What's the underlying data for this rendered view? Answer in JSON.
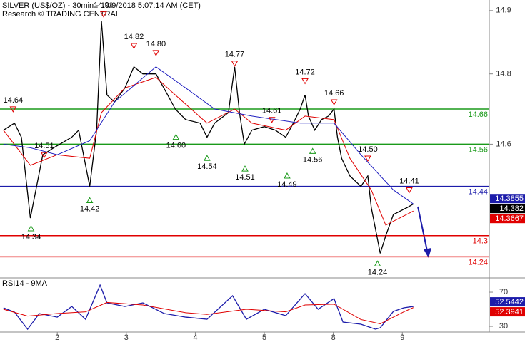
{
  "chart_data": [
    {
      "type": "line",
      "title": "SILVER (US$/OZ) - 30min - 10/9/2018 5:07:14 AM (CET)",
      "subtitle": "Research © TRADING CENTRAL",
      "xlim": [
        1.17,
        10.26
      ],
      "xticks": [
        2,
        3,
        4,
        5,
        8,
        9
      ],
      "ylim": [
        14.18,
        14.97
      ],
      "yticks": [
        {
          "value": 14.94,
          "label": "14.9"
        },
        {
          "value": 14.76,
          "label": "14.8"
        },
        {
          "value": 14.56,
          "label": "14.6"
        }
      ],
      "series": [
        {
          "color": "#000000",
          "x": [
            1.22,
            1.38,
            1.48,
            1.61,
            1.79,
            1.95,
            2.21,
            2.31,
            2.47,
            2.57,
            2.64,
            2.72,
            2.83,
            2.98,
            3.11,
            3.24,
            3.43,
            3.6,
            3.71,
            3.86,
            4.07,
            4.17,
            4.28,
            4.48,
            4.57,
            4.64,
            4.71,
            4.82,
            5.0,
            5.16,
            5.31,
            5.42,
            5.52,
            5.59,
            5.64,
            5.73,
            5.83,
            5.93,
            8.01,
            8.06,
            8.12,
            8.24,
            8.4,
            8.5,
            8.55,
            8.63,
            8.68,
            8.76,
            8.87,
            8.97,
            9.07,
            9.16
          ],
          "values": [
            14.6,
            14.62,
            14.58,
            14.35,
            14.53,
            14.55,
            14.58,
            14.6,
            14.44,
            14.6,
            14.91,
            14.7,
            14.68,
            14.72,
            14.78,
            14.76,
            14.76,
            14.7,
            14.66,
            14.63,
            14.62,
            14.58,
            14.62,
            14.65,
            14.78,
            14.65,
            14.56,
            14.6,
            14.61,
            14.6,
            14.58,
            14.62,
            14.66,
            14.7,
            14.64,
            14.6,
            14.63,
            14.64,
            14.66,
            14.58,
            14.52,
            14.47,
            14.44,
            14.47,
            14.38,
            14.3,
            14.25,
            14.3,
            14.36,
            14.37,
            14.38,
            14.39
          ]
        },
        {
          "color": "#e00000",
          "x": [
            1.22,
            1.61,
            2.0,
            2.47,
            2.64,
            2.98,
            3.43,
            3.71,
            4.17,
            4.57,
            4.82,
            5.31,
            5.59,
            8.01,
            8.24,
            8.55,
            8.76,
            9.16
          ],
          "values": [
            14.6,
            14.5,
            14.53,
            14.52,
            14.65,
            14.72,
            14.75,
            14.7,
            14.62,
            14.66,
            14.62,
            14.6,
            14.64,
            14.63,
            14.52,
            14.43,
            14.33,
            14.37
          ]
        },
        {
          "color": "#2020c0",
          "x": [
            1.22,
            1.61,
            2.0,
            2.47,
            2.83,
            3.43,
            3.86,
            4.28,
            4.82,
            5.52,
            8.01,
            8.4,
            8.87,
            9.16
          ],
          "values": [
            14.56,
            14.55,
            14.53,
            14.57,
            14.68,
            14.78,
            14.72,
            14.66,
            14.64,
            14.62,
            14.62,
            14.53,
            14.43,
            14.39
          ]
        }
      ],
      "levels": [
        {
          "value": 14.66,
          "color": "#1a9a1a"
        },
        {
          "value": 14.56,
          "color": "#1a9a1a"
        },
        {
          "value": 14.44,
          "color": "#1c1caa"
        },
        {
          "value": 14.3,
          "color": "#e00000"
        },
        {
          "value": 14.24,
          "color": "#e00000"
        }
      ],
      "peaks": [
        {
          "x": 1.36,
          "value": 14.64
        },
        {
          "x": 1.81,
          "value": 14.51
        },
        {
          "x": 2.67,
          "value": 14.91
        },
        {
          "x": 3.11,
          "value": 14.82
        },
        {
          "x": 3.43,
          "value": 14.8,
          "label": "14.80"
        },
        {
          "x": 4.57,
          "value": 14.77
        },
        {
          "x": 5.11,
          "value": 14.61
        },
        {
          "x": 5.59,
          "value": 14.72
        },
        {
          "x": 8.01,
          "value": 14.66
        },
        {
          "x": 8.5,
          "value": 14.5,
          "label": "14.50"
        },
        {
          "x": 9.1,
          "value": 14.41
        }
      ],
      "troughs": [
        {
          "x": 1.62,
          "value": 14.34
        },
        {
          "x": 2.47,
          "value": 14.42
        },
        {
          "x": 3.72,
          "value": 14.6,
          "label": "14.60"
        },
        {
          "x": 4.17,
          "value": 14.54
        },
        {
          "x": 4.72,
          "value": 14.51
        },
        {
          "x": 5.33,
          "value": 14.49
        },
        {
          "x": 5.7,
          "value": 14.56
        },
        {
          "x": 8.64,
          "value": 14.24
        }
      ],
      "last_values": [
        {
          "value": 14.3855,
          "color": "#1c1caa"
        },
        {
          "value": 14.382,
          "color": "#000000"
        },
        {
          "value": 14.3667,
          "color": "#e00000"
        }
      ]
    },
    {
      "type": "line",
      "title": "RSI14 - 9MA",
      "xlim": [
        1.17,
        10.26
      ],
      "ylim": [
        24.2,
        84.2
      ],
      "yticks": [
        70,
        30
      ],
      "series": [
        {
          "color": "#1c1caa",
          "x": [
            1.22,
            1.38,
            1.57,
            1.74,
            2.0,
            2.21,
            2.41,
            2.62,
            2.72,
            2.98,
            3.24,
            3.55,
            3.86,
            4.17,
            4.54,
            4.74,
            5.0,
            5.31,
            5.59,
            5.78,
            8.01,
            8.14,
            8.4,
            8.61,
            8.68,
            8.87,
            9.02,
            9.16
          ],
          "values": [
            51.7,
            46.7,
            26.7,
            45,
            40.8,
            53.3,
            38.3,
            78.3,
            57.5,
            53.3,
            57.5,
            45,
            40.8,
            38.3,
            65.8,
            38.3,
            50,
            42.5,
            68.3,
            50,
            62.5,
            35,
            32.5,
            26.7,
            28.3,
            47.5,
            51.7,
            53.3
          ]
        },
        {
          "color": "#e00000",
          "x": [
            1.22,
            1.57,
            2.0,
            2.41,
            2.72,
            3.24,
            3.86,
            4.17,
            4.74,
            5.31,
            5.59,
            8.01,
            8.4,
            8.68,
            9.02,
            9.16
          ],
          "values": [
            50,
            42,
            45,
            47,
            58,
            55,
            46,
            44,
            50,
            47,
            55,
            56,
            38,
            33,
            47,
            52
          ]
        }
      ],
      "last_values": [
        {
          "value": 52.5442,
          "color": "#1c1caa"
        },
        {
          "value": 52.3941,
          "color": "#e00000"
        }
      ]
    }
  ]
}
